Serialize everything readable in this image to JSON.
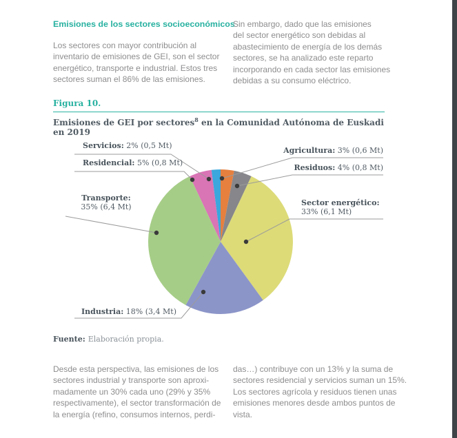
{
  "colors": {
    "accent": "#27b1a0",
    "body_text": "#8d8d8f",
    "chart_text": "#4f5a62",
    "window_edge": "#3f4449",
    "leader_line": "#9b9b9b",
    "leader_dot": "#3a3a3a"
  },
  "intro": {
    "heading": "Emisiones de los sectores socioeconómicos",
    "left_paragraph": "Los sectores con mayor contribución al\ninventario de emisiones de GEI, son el sector\nenergético, transporte e industrial. Estos tres\nsectores suman el 86% de las emisiones.",
    "right_paragraph": "Sin embargo, dado que las emisiones\ndel sector energético son debidas al\nabastecimiento de energía de los demás\nsectores, se ha analizado este reparto\nincorporando en cada sector las emisiones\ndebidas a su consumo eléctrico."
  },
  "figure": {
    "label": "Figura 10.",
    "title_pre": "Emisiones de GEI por sectores",
    "title_sup": "8",
    "title_post": " en la Comunidad Autónoma de Euskadi en 2019",
    "source_label": "Fuente:",
    "source_text": "Elaboración propia."
  },
  "chart_data": {
    "type": "pie",
    "title": "Emisiones de GEI por sectores en la Comunidad Autónoma de Euskadi en 2019",
    "unit": "Mt",
    "start_angle_deg": -25.2,
    "slices": [
      {
        "label": "Residencial:",
        "display": "5% (0,8 Mt)",
        "pct": 5,
        "mt": 0.8,
        "color": "#d974b5"
      },
      {
        "label": "Servicios:",
        "display": "2% (0,5 Mt)",
        "pct": 2,
        "mt": 0.5,
        "color": "#3ba7dc"
      },
      {
        "label": "Agricultura:",
        "display": "3% (0,6 Mt)",
        "pct": 3,
        "mt": 0.6,
        "color": "#e5803f"
      },
      {
        "label": "Residuos:",
        "display": "4% (0,8 Mt)",
        "pct": 4,
        "mt": 0.8,
        "color": "#87868a"
      },
      {
        "label": "Sector energético:",
        "display": "33% (6,1 Mt)",
        "pct": 33,
        "mt": 6.1,
        "color": "#dcdb78"
      },
      {
        "label": "Industria:",
        "display": "18% (3,4 Mt)",
        "pct": 18,
        "mt": 3.4,
        "color": "#8c95c8"
      },
      {
        "label": "Transporte:",
        "display": "35% (6,4 Mt)",
        "pct": 35,
        "mt": 6.4,
        "color": "#a6cd87"
      }
    ]
  },
  "outro": {
    "left_paragraph": "Desde esta perspectiva, las emisiones de los\nsectores industrial y transporte son aproxi-\nmadamente un 30% cada uno (29% y 35%\nrespectivamente), el sector transformación de\nla energía (refino, consumos internos, perdi-",
    "right_paragraph": "das…) contribuye con un 13% y la suma de\nsectores residencial y servicios suman un 15%.\nLos sectores agrícola y residuos tienen unas\nemisiones menores desde ambos puntos de\nvista."
  }
}
